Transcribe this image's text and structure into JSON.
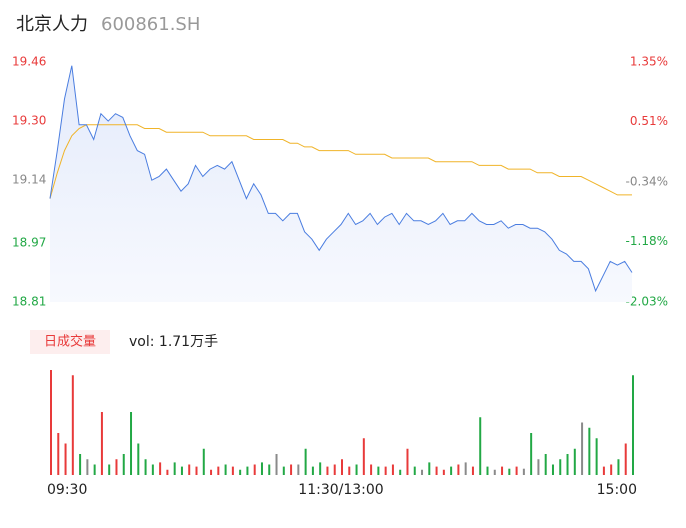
{
  "header": {
    "name": "北京人力",
    "code": "600861.SH"
  },
  "volume_panel": {
    "tab": "日成交量",
    "summary": "vol: 1.71万手"
  },
  "chart_data": {
    "type": "intraday",
    "xlim": [
      0,
      240
    ],
    "xticks": [
      {
        "value": 0,
        "label": "09:30"
      },
      {
        "value": 120,
        "label": "11:30/13:00"
      },
      {
        "value": 240,
        "label": "15:00"
      }
    ],
    "ylim": [
      18.81,
      19.46
    ],
    "yticks": [
      19.46,
      {
        "value": 19.3,
        "label": "19.30"
      },
      19.14,
      18.97,
      18.81
    ],
    "y2lim": [
      -2.03,
      1.35
    ],
    "y2ticks": [
      {
        "value": 1.35,
        "label": "1.35%"
      },
      {
        "value": 0.51,
        "label": "0.51%"
      },
      {
        "value": -0.34,
        "label": "-0.34%"
      },
      {
        "value": -1.18,
        "label": "-1.18%"
      },
      {
        "value": -2.03,
        "label": "-2.03%"
      }
    ],
    "x": [
      0,
      3,
      6,
      9,
      12,
      15,
      18,
      21,
      24,
      27,
      30,
      33,
      36,
      39,
      42,
      45,
      48,
      51,
      54,
      57,
      60,
      63,
      66,
      69,
      72,
      75,
      78,
      81,
      84,
      87,
      90,
      93,
      96,
      99,
      102,
      105,
      108,
      111,
      114,
      117,
      120,
      123,
      126,
      129,
      132,
      135,
      138,
      141,
      144,
      147,
      150,
      153,
      156,
      159,
      162,
      165,
      168,
      171,
      174,
      177,
      180,
      183,
      186,
      189,
      192,
      195,
      198,
      201,
      204,
      207,
      210,
      213,
      216,
      219,
      222,
      225,
      228,
      231,
      234,
      237,
      240
    ],
    "series": [
      {
        "name": "price",
        "color": "#4a7de0",
        "values": [
          19.09,
          19.22,
          19.36,
          19.45,
          19.29,
          19.29,
          19.25,
          19.32,
          19.3,
          19.32,
          19.31,
          19.26,
          19.22,
          19.21,
          19.14,
          19.15,
          19.17,
          19.14,
          19.11,
          19.13,
          19.18,
          19.15,
          19.17,
          19.18,
          19.17,
          19.19,
          19.14,
          19.09,
          19.13,
          19.1,
          19.05,
          19.05,
          19.03,
          19.05,
          19.05,
          19.0,
          18.98,
          18.95,
          18.98,
          19.0,
          19.02,
          19.05,
          19.02,
          19.03,
          19.05,
          19.02,
          19.04,
          19.05,
          19.02,
          19.05,
          19.03,
          19.03,
          19.02,
          19.03,
          19.05,
          19.02,
          19.03,
          19.03,
          19.05,
          19.03,
          19.02,
          19.02,
          19.03,
          19.01,
          19.02,
          19.02,
          19.01,
          19.01,
          19.0,
          18.98,
          18.95,
          18.94,
          18.92,
          18.92,
          18.9,
          18.84,
          18.88,
          18.92,
          18.91,
          18.92,
          18.89
        ]
      },
      {
        "name": "average",
        "color": "#f0b429",
        "values": [
          19.09,
          19.16,
          19.22,
          19.26,
          19.28,
          19.29,
          19.29,
          19.29,
          19.29,
          19.29,
          19.29,
          19.29,
          19.29,
          19.28,
          19.28,
          19.28,
          19.27,
          19.27,
          19.27,
          19.27,
          19.27,
          19.27,
          19.26,
          19.26,
          19.26,
          19.26,
          19.26,
          19.26,
          19.25,
          19.25,
          19.25,
          19.25,
          19.25,
          19.24,
          19.24,
          19.23,
          19.23,
          19.22,
          19.22,
          19.22,
          19.22,
          19.22,
          19.21,
          19.21,
          19.21,
          19.21,
          19.21,
          19.2,
          19.2,
          19.2,
          19.2,
          19.2,
          19.2,
          19.19,
          19.19,
          19.19,
          19.19,
          19.19,
          19.19,
          19.18,
          19.18,
          19.18,
          19.18,
          19.17,
          19.17,
          19.17,
          19.17,
          19.16,
          19.16,
          19.16,
          19.15,
          19.15,
          19.15,
          19.15,
          19.14,
          19.13,
          19.12,
          19.11,
          19.1,
          19.1,
          19.1
        ]
      }
    ],
    "volume": [
      100,
      40,
      30,
      95,
      20,
      15,
      10,
      60,
      10,
      15,
      20,
      60,
      30,
      15,
      10,
      12,
      5,
      12,
      8,
      10,
      8,
      25,
      5,
      8,
      10,
      8,
      5,
      8,
      10,
      12,
      10,
      20,
      8,
      10,
      10,
      25,
      8,
      12,
      8,
      10,
      15,
      8,
      10,
      35,
      10,
      8,
      8,
      10,
      5,
      25,
      8,
      5,
      12,
      8,
      5,
      8,
      10,
      12,
      8,
      55,
      8,
      5,
      8,
      6,
      8,
      6,
      40,
      15,
      20,
      10,
      15,
      20,
      25,
      50,
      45,
      35,
      8,
      10,
      15,
      30,
      95
    ],
    "vlim": [
      0,
      100
    ],
    "up_color": "#e83a3a",
    "down_color": "#22a845",
    "flat_color": "#8a8a8a"
  }
}
